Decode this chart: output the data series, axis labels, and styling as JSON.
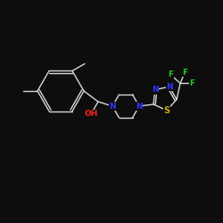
{
  "background_color": "#0d0d0d",
  "bond_color": "#d8d8d8",
  "atom_colors": {
    "O": "#ff2020",
    "N": "#3333ff",
    "S": "#ccaa00",
    "F": "#22cc22",
    "C": "#d8d8d8",
    "H": "#d8d8d8"
  },
  "font_size": 6.5,
  "lw": 1.0
}
